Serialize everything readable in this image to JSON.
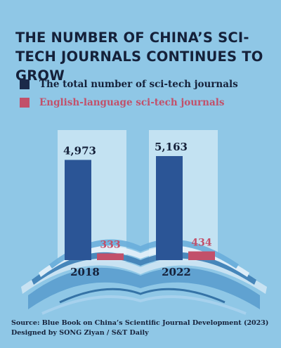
{
  "title": "THE NUMBER OF CHINA’S SCI-TECH JOURNALS CONTINUES TO GROW",
  "legend": [
    {
      "label": "The total number of sci-tech journals",
      "color": "#2b5596"
    },
    {
      "label": "English-language sci-tech journals",
      "color": "#c2506a"
    }
  ],
  "chart_data": {
    "type": "bar",
    "categories": [
      "2018",
      "2022"
    ],
    "series": [
      {
        "name": "The total number of sci-tech journals",
        "values": [
          4973,
          5163
        ],
        "labels": [
          "4,973",
          "5,163"
        ]
      },
      {
        "name": "English-language sci-tech journals",
        "values": [
          333,
          434
        ],
        "labels": [
          "333",
          "434"
        ]
      }
    ],
    "ylim": [
      0,
      5163
    ]
  },
  "source": "Source: Blue Book on China’s Scientific Journal Development (2023)",
  "credit": "Designed by SONG Ziyan / S&T Daily"
}
